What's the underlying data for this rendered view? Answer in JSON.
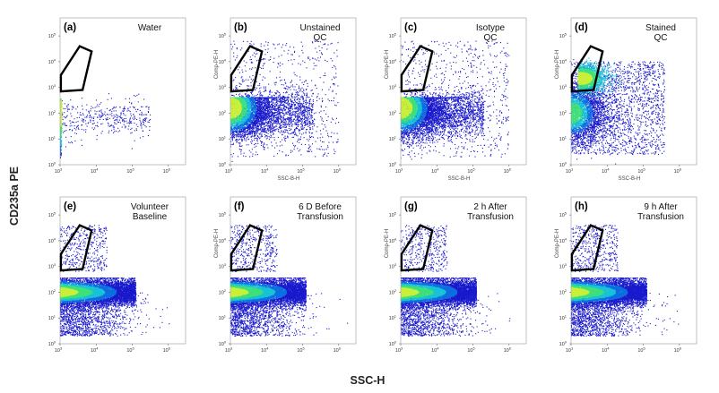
{
  "figure": {
    "y_axis_label": "CD235a PE",
    "x_axis_label": "SSC-H"
  },
  "chart_data": {
    "type": "scatter",
    "subtype": "flow-cytometry density dot plot (log-log)",
    "x_scale": "log",
    "y_scale": "log",
    "xlim": [
      1000,
      3000000
    ],
    "ylim": [
      1,
      500000
    ],
    "x_ticks": [
      1000,
      10000,
      100000,
      1000000
    ],
    "y_ticks": [
      1,
      10,
      100,
      1000,
      10000,
      100000
    ],
    "x_tick_labels": [
      {
        "base": "10",
        "exp": "3"
      },
      {
        "base": "10",
        "exp": "4"
      },
      {
        "base": "10",
        "exp": "5"
      },
      {
        "base": "10",
        "exp": "6"
      }
    ],
    "y_tick_labels": [
      {
        "base": "10",
        "exp": "0"
      },
      {
        "base": "10",
        "exp": "1"
      },
      {
        "base": "10",
        "exp": "2"
      },
      {
        "base": "10",
        "exp": "3"
      },
      {
        "base": "10",
        "exp": "4"
      },
      {
        "base": "10",
        "exp": "5"
      }
    ],
    "density_colors": [
      "#1a1acc",
      "#0d6fe0",
      "#19c2d6",
      "#3fe07a",
      "#c8f03c"
    ],
    "panels": [
      {
        "id": "a",
        "letter": "(a)",
        "condition": [
          "Water"
        ],
        "x_title": "",
        "y_title": "",
        "gate_polygon": [
          [
            1050,
            700
          ],
          [
            1050,
            3000
          ],
          [
            3500,
            40000
          ],
          [
            7500,
            25000
          ],
          [
            4200,
            800
          ]
        ],
        "population": {
          "kind": "water",
          "events": 900
        }
      },
      {
        "id": "b",
        "letter": "(b)",
        "condition": [
          "Unstained",
          "QC"
        ],
        "x_title": "SSC-B-H",
        "y_title": "Comp-PE-H",
        "gate_polygon": [
          [
            1050,
            700
          ],
          [
            1050,
            3000
          ],
          [
            3500,
            40000
          ],
          [
            7500,
            25000
          ],
          [
            4200,
            800
          ]
        ],
        "population": {
          "kind": "blob",
          "events": 6500
        }
      },
      {
        "id": "c",
        "letter": "(c)",
        "condition": [
          "Isotype",
          "QC"
        ],
        "x_title": "SSC-B-H",
        "y_title": "Comp-PE-H",
        "gate_polygon": [
          [
            1050,
            700
          ],
          [
            1050,
            3000
          ],
          [
            3500,
            40000
          ],
          [
            7500,
            25000
          ],
          [
            4200,
            800
          ]
        ],
        "population": {
          "kind": "blob-wide",
          "events": 7000
        }
      },
      {
        "id": "d",
        "letter": "(d)",
        "condition": [
          "Stained",
          "QC"
        ],
        "x_title": "SSC-B-H",
        "y_title": "Comp-PE-H",
        "gate_polygon": [
          [
            1050,
            700
          ],
          [
            1050,
            3000
          ],
          [
            3500,
            40000
          ],
          [
            7500,
            25000
          ],
          [
            4200,
            800
          ]
        ],
        "population": {
          "kind": "stained",
          "events": 7000
        }
      },
      {
        "id": "e",
        "letter": "(e)",
        "condition": [
          "Volunteer",
          "Baseline"
        ],
        "x_title": "",
        "y_title": "",
        "gate_polygon": [
          [
            1050,
            700
          ],
          [
            1050,
            3000
          ],
          [
            3500,
            40000
          ],
          [
            7500,
            25000
          ],
          [
            4200,
            800
          ]
        ],
        "population": {
          "kind": "band",
          "events": 9000
        }
      },
      {
        "id": "f",
        "letter": "(f)",
        "condition": [
          "6 D Before",
          "Transfusion"
        ],
        "x_title": "",
        "y_title": "Comp-PE-H",
        "gate_polygon": [
          [
            1050,
            700
          ],
          [
            1050,
            3000
          ],
          [
            3500,
            40000
          ],
          [
            7500,
            25000
          ],
          [
            4200,
            800
          ]
        ],
        "population": {
          "kind": "band",
          "events": 9000
        }
      },
      {
        "id": "g",
        "letter": "(g)",
        "condition": [
          "2 h After",
          "Transfusion"
        ],
        "x_title": "",
        "y_title": "Comp-PE-H",
        "gate_polygon": [
          [
            1050,
            700
          ],
          [
            1050,
            3000
          ],
          [
            3500,
            40000
          ],
          [
            7500,
            25000
          ],
          [
            4200,
            800
          ]
        ],
        "population": {
          "kind": "band-gate",
          "events": 9000
        }
      },
      {
        "id": "h",
        "letter": "(h)",
        "condition": [
          "9 h After",
          "Transfusion"
        ],
        "x_title": "",
        "y_title": "Comp-PE-H",
        "gate_polygon": [
          [
            1050,
            700
          ],
          [
            1050,
            3000
          ],
          [
            3500,
            40000
          ],
          [
            7500,
            25000
          ],
          [
            4200,
            800
          ]
        ],
        "population": {
          "kind": "band",
          "events": 9000
        }
      }
    ]
  }
}
